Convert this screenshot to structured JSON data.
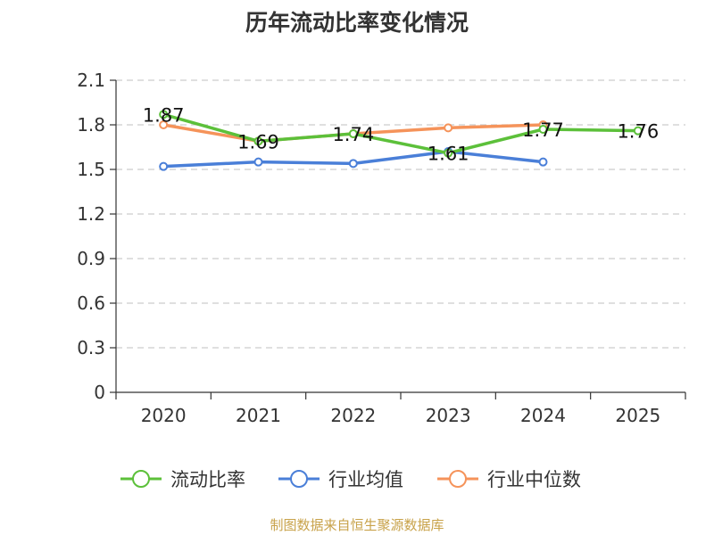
{
  "chart_data": {
    "type": "line",
    "title": "历年流动比率变化情况",
    "categories": [
      "2020",
      "2021",
      "2022",
      "2023",
      "2024",
      "2025"
    ],
    "ylim": [
      0,
      2.1
    ],
    "yticks": [
      "0",
      "0.3",
      "0.6",
      "0.9",
      "1.2",
      "1.5",
      "1.8",
      "2.1"
    ],
    "grid": true,
    "legend_position": "bottom",
    "series": [
      {
        "name": "流动比率",
        "color": "#5cc03a",
        "values": [
          1.87,
          1.69,
          1.74,
          1.61,
          1.77,
          1.76
        ],
        "labels": [
          "1.87",
          "1.69",
          "1.74",
          "1.61",
          "1.77",
          "1.76"
        ]
      },
      {
        "name": "行业均值",
        "color": "#4a7fd8",
        "values": [
          1.52,
          1.55,
          1.54,
          1.62,
          1.55,
          null
        ]
      },
      {
        "name": "行业中位数",
        "color": "#f5935a",
        "values": [
          1.8,
          1.69,
          1.74,
          1.78,
          1.8,
          null
        ]
      }
    ],
    "source": "制图数据来自恒生聚源数据库"
  }
}
